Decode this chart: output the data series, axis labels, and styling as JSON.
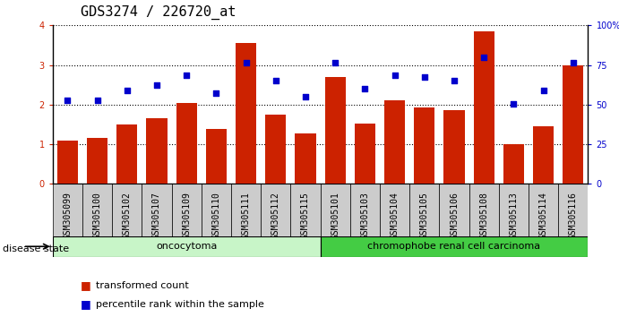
{
  "title": "GDS3274 / 226720_at",
  "samples": [
    "GSM305099",
    "GSM305100",
    "GSM305102",
    "GSM305107",
    "GSM305109",
    "GSM305110",
    "GSM305111",
    "GSM305112",
    "GSM305115",
    "GSM305101",
    "GSM305103",
    "GSM305104",
    "GSM305105",
    "GSM305106",
    "GSM305108",
    "GSM305113",
    "GSM305114",
    "GSM305116"
  ],
  "bar_values": [
    1.1,
    1.15,
    1.5,
    1.65,
    2.05,
    1.38,
    3.55,
    1.75,
    1.27,
    2.7,
    1.52,
    2.1,
    1.92,
    1.85,
    3.85,
    1.0,
    1.45,
    3.0
  ],
  "dot_values": [
    2.1,
    2.1,
    2.35,
    2.5,
    2.75,
    2.28,
    3.05,
    2.6,
    2.2,
    3.05,
    2.4,
    2.75,
    2.7,
    2.6,
    3.2,
    2.02,
    2.35,
    3.05
  ],
  "groups": [
    {
      "label": "oncocytoma",
      "start": 0,
      "end": 9,
      "color": "#c8f5c8"
    },
    {
      "label": "chromophobe renal cell carcinoma",
      "start": 9,
      "end": 18,
      "color": "#44cc44"
    }
  ],
  "bar_color": "#cc2200",
  "dot_color": "#0000cc",
  "ylim_left": [
    0,
    4
  ],
  "yticks_left": [
    0,
    1,
    2,
    3,
    4
  ],
  "yticks_right": [
    0,
    25,
    50,
    75,
    100
  ],
  "title_fontsize": 11,
  "tick_fontsize": 7,
  "label_fontsize": 8,
  "disease_state_label": "disease state",
  "legend_items": [
    {
      "label": "transformed count",
      "color": "#cc2200"
    },
    {
      "label": "percentile rank within the sample",
      "color": "#0000cc"
    }
  ]
}
